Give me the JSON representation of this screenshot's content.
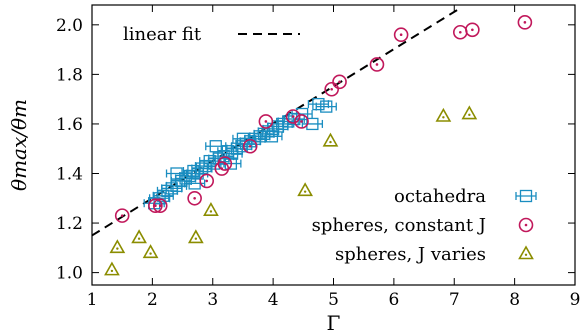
{
  "chart_data": {
    "type": "scatter",
    "xlabel": "Γ",
    "ylabel": "θmax/θm",
    "xlim": [
      1,
      9
    ],
    "ylim": [
      0.95,
      2.08
    ],
    "xticks": [
      "1",
      "2",
      "3",
      "4",
      "5",
      "6",
      "7",
      "8",
      "9"
    ],
    "yticks": [
      "1.0",
      "1.2",
      "1.4",
      "1.6",
      "1.8",
      "2.0"
    ],
    "grid": false,
    "legend_position": "bottom-right",
    "fit_line": {
      "name": "linear fit",
      "color": "#000000",
      "points": [
        [
          1.0,
          1.15
        ],
        [
          7.05,
          2.06
        ]
      ]
    },
    "series": [
      {
        "name": "octahedra",
        "marker": "square-errorbar",
        "color": "#1a8dc0",
        "points": [
          [
            2.03,
            1.28
          ],
          [
            2.12,
            1.3
          ],
          [
            2.18,
            1.31
          ],
          [
            2.25,
            1.33
          ],
          [
            2.32,
            1.34
          ],
          [
            2.4,
            1.35
          ],
          [
            2.48,
            1.37
          ],
          [
            2.55,
            1.38
          ],
          [
            2.62,
            1.39
          ],
          [
            2.68,
            1.41
          ],
          [
            2.75,
            1.4
          ],
          [
            2.82,
            1.42
          ],
          [
            2.88,
            1.43
          ],
          [
            2.95,
            1.45
          ],
          [
            3.02,
            1.44
          ],
          [
            3.1,
            1.46
          ],
          [
            3.18,
            1.47
          ],
          [
            3.25,
            1.49
          ],
          [
            3.32,
            1.48
          ],
          [
            3.4,
            1.5
          ],
          [
            3.48,
            1.51
          ],
          [
            3.55,
            1.52
          ],
          [
            3.62,
            1.53
          ],
          [
            3.7,
            1.54
          ],
          [
            3.78,
            1.55
          ],
          [
            3.85,
            1.56
          ],
          [
            3.92,
            1.57
          ],
          [
            4.0,
            1.58
          ],
          [
            4.08,
            1.59
          ],
          [
            4.15,
            1.6
          ],
          [
            4.25,
            1.61
          ],
          [
            4.35,
            1.62
          ],
          [
            4.48,
            1.64
          ],
          [
            4.65,
            1.6
          ],
          [
            4.75,
            1.68
          ],
          [
            4.88,
            1.67
          ],
          [
            3.05,
            1.51
          ],
          [
            3.5,
            1.54
          ],
          [
            3.98,
            1.55
          ],
          [
            2.7,
            1.36
          ],
          [
            2.4,
            1.4
          ],
          [
            3.3,
            1.44
          ]
        ]
      },
      {
        "name": "spheres, constant J",
        "marker": "circle-dot",
        "color": "#c1185b",
        "points": [
          [
            1.5,
            1.23
          ],
          [
            2.05,
            1.27
          ],
          [
            2.13,
            1.27
          ],
          [
            2.7,
            1.3
          ],
          [
            2.9,
            1.37
          ],
          [
            3.15,
            1.42
          ],
          [
            3.2,
            1.44
          ],
          [
            3.62,
            1.51
          ],
          [
            3.88,
            1.61
          ],
          [
            4.33,
            1.63
          ],
          [
            4.47,
            1.61
          ],
          [
            4.97,
            1.74
          ],
          [
            5.1,
            1.77
          ],
          [
            5.72,
            1.84
          ],
          [
            6.12,
            1.96
          ],
          [
            7.1,
            1.97
          ],
          [
            7.3,
            1.98
          ],
          [
            8.17,
            2.01
          ]
        ]
      },
      {
        "name": "spheres, J varies",
        "marker": "triangle",
        "color": "#8b8d00",
        "points": [
          [
            1.33,
            1.01
          ],
          [
            1.42,
            1.1
          ],
          [
            1.78,
            1.14
          ],
          [
            1.97,
            1.08
          ],
          [
            2.72,
            1.14
          ],
          [
            2.97,
            1.25
          ],
          [
            4.53,
            1.33
          ],
          [
            4.95,
            1.53
          ],
          [
            6.82,
            1.63
          ],
          [
            7.25,
            1.64
          ]
        ]
      }
    ]
  }
}
